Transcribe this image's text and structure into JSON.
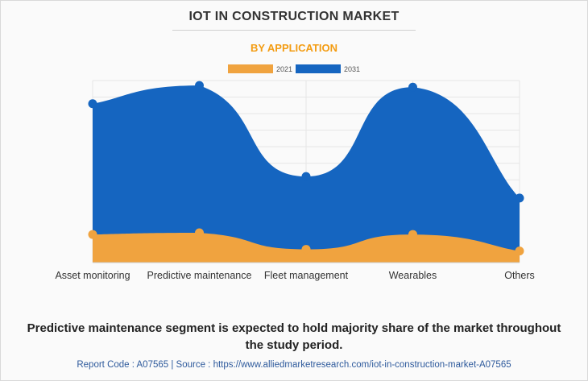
{
  "header": {
    "title": "IOT IN CONSTRUCTION MARKET",
    "subtitle": "BY APPLICATION"
  },
  "colors": {
    "subtitle": "#f39c12",
    "series_2021": "#f0a33f",
    "series_2031": "#1565c0",
    "grid": "#e6e6e6",
    "axis_label": "#333333"
  },
  "chart_data": {
    "type": "area",
    "title": "IOT IN CONSTRUCTION MARKET",
    "subtitle": "BY APPLICATION",
    "categories": [
      "Asset monitoring",
      "Predictive maintenance",
      "Fleet management",
      "Wearables",
      "Others"
    ],
    "series": [
      {
        "name": "2031",
        "values": [
          9.6,
          10.7,
          5.2,
          10.6,
          3.9
        ]
      },
      {
        "name": "2021",
        "values": [
          1.7,
          1.8,
          0.8,
          1.7,
          0.7
        ]
      }
    ],
    "ylim": [
      0,
      11
    ],
    "xlabel": "",
    "ylabel": "",
    "grid": true,
    "legend": "top-center"
  },
  "legend": {
    "items": [
      {
        "label": "2021"
      },
      {
        "label": "2031"
      }
    ]
  },
  "footnote": {
    "line1": "Predictive maintenance segment is expected to hold majority share of the market throughout",
    "line2": "the study period."
  },
  "source": {
    "text": "Report Code : A07565  |  Source : https://www.alliedmarketresearch.com/iot-in-construction-market-A07565"
  }
}
